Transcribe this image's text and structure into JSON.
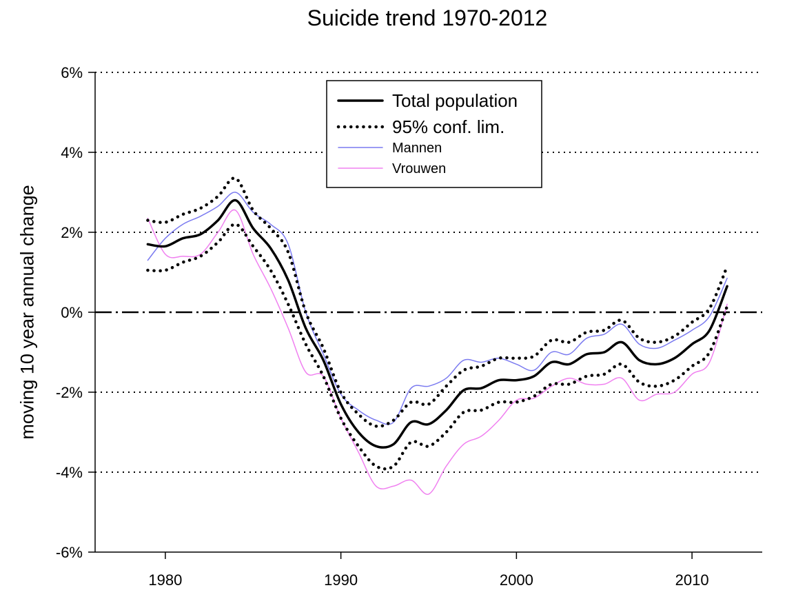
{
  "chart_data": {
    "type": "line",
    "title": "Suicide trend 1970-2012",
    "ylabel": "moving 10 year annual change",
    "xlabel": "",
    "xlim": [
      1976,
      2014
    ],
    "ylim": [
      -6,
      6
    ],
    "x_ticks": [
      1980,
      1990,
      2000,
      2010
    ],
    "y_ticks": [
      6,
      4,
      2,
      0,
      -2,
      -4,
      -6
    ],
    "y_tick_labels": [
      "6%",
      "4%",
      "2%",
      "0%",
      "-2%",
      "-4%",
      "-6%"
    ],
    "grid": "horizontal dotted",
    "zero_line": "dash-dot",
    "legend_position": "top-center",
    "series": [
      {
        "name": "Total population",
        "color": "#000000",
        "style": "solid-thick",
        "x": [
          1979,
          1980,
          1981,
          1982,
          1983,
          1984,
          1985,
          1986,
          1987,
          1988,
          1989,
          1990,
          1991,
          1992,
          1993,
          1994,
          1995,
          1996,
          1997,
          1998,
          1999,
          2000,
          2001,
          2002,
          2003,
          2004,
          2005,
          2006,
          2007,
          2008,
          2009,
          2010,
          2011,
          2012
        ],
        "y": [
          1.7,
          1.65,
          1.85,
          1.95,
          2.3,
          2.8,
          2.1,
          1.6,
          0.8,
          -0.4,
          -1.2,
          -2.3,
          -3.0,
          -3.35,
          -3.3,
          -2.75,
          -2.8,
          -2.45,
          -1.95,
          -1.9,
          -1.7,
          -1.7,
          -1.6,
          -1.25,
          -1.3,
          -1.05,
          -1.0,
          -0.75,
          -1.2,
          -1.3,
          -1.15,
          -0.8,
          -0.45,
          0.65
        ]
      },
      {
        "name": "95% conf. lim.",
        "color": "#000000",
        "style": "dotted-thick",
        "x": [
          1979,
          1980,
          1981,
          1982,
          1983,
          1984,
          1985,
          1986,
          1987,
          1988,
          1989,
          1990,
          1991,
          1992,
          1993,
          1994,
          1995,
          1996,
          1997,
          1998,
          1999,
          2000,
          2001,
          2002,
          2003,
          2004,
          2005,
          2006,
          2007,
          2008,
          2009,
          2010,
          2011,
          2012
        ],
        "y": [
          2.3,
          2.25,
          2.45,
          2.6,
          2.9,
          3.35,
          2.55,
          2.1,
          1.5,
          0.0,
          -0.9,
          -2.0,
          -2.55,
          -2.85,
          -2.7,
          -2.25,
          -2.3,
          -1.85,
          -1.45,
          -1.35,
          -1.15,
          -1.15,
          -1.1,
          -0.7,
          -0.75,
          -0.5,
          -0.45,
          -0.2,
          -0.65,
          -0.75,
          -0.6,
          -0.25,
          0.1,
          1.15
        ]
      },
      {
        "name": "",
        "color": "#000000",
        "style": "dotted-thick",
        "x": [
          1979,
          1980,
          1981,
          1982,
          1983,
          1984,
          1985,
          1986,
          1987,
          1988,
          1989,
          1990,
          1991,
          1992,
          1993,
          1994,
          1995,
          1996,
          1997,
          1998,
          1999,
          2000,
          2001,
          2002,
          2003,
          2004,
          2005,
          2006,
          2007,
          2008,
          2009,
          2010,
          2011,
          2012
        ],
        "y": [
          1.05,
          1.05,
          1.25,
          1.4,
          1.75,
          2.2,
          1.65,
          1.05,
          0.2,
          -0.8,
          -1.6,
          -2.65,
          -3.35,
          -3.85,
          -3.85,
          -3.25,
          -3.35,
          -3.0,
          -2.5,
          -2.45,
          -2.25,
          -2.25,
          -2.1,
          -1.8,
          -1.8,
          -1.6,
          -1.55,
          -1.3,
          -1.75,
          -1.85,
          -1.7,
          -1.35,
          -1.0,
          0.15
        ]
      },
      {
        "name": "Mannen",
        "color": "#7a7af0",
        "style": "solid-thin",
        "x": [
          1979,
          1980,
          1981,
          1982,
          1983,
          1984,
          1985,
          1986,
          1987,
          1988,
          1989,
          1990,
          1991,
          1992,
          1993,
          1994,
          1995,
          1996,
          1997,
          1998,
          1999,
          2000,
          2001,
          2002,
          2003,
          2004,
          2005,
          2006,
          2007,
          2008,
          2009,
          2010,
          2011,
          2012
        ],
        "y": [
          1.3,
          1.85,
          2.2,
          2.4,
          2.65,
          3.0,
          2.5,
          2.2,
          1.7,
          0.0,
          -1.05,
          -2.05,
          -2.45,
          -2.7,
          -2.75,
          -1.9,
          -1.85,
          -1.65,
          -1.2,
          -1.25,
          -1.15,
          -1.3,
          -1.45,
          -1.0,
          -1.05,
          -0.65,
          -0.55,
          -0.3,
          -0.8,
          -0.9,
          -0.7,
          -0.45,
          -0.1,
          0.85
        ]
      },
      {
        "name": "Vrouwen",
        "color": "#f080f0",
        "style": "solid-thin",
        "x": [
          1979,
          1980,
          1981,
          1982,
          1983,
          1984,
          1985,
          1986,
          1987,
          1988,
          1989,
          1990,
          1991,
          1992,
          1993,
          1994,
          1995,
          1996,
          1997,
          1998,
          1999,
          2000,
          2001,
          2002,
          2003,
          2004,
          2005,
          2006,
          2007,
          2008,
          2009,
          2010,
          2011,
          2012
        ],
        "y": [
          2.35,
          1.45,
          1.4,
          1.45,
          2.0,
          2.55,
          1.45,
          0.6,
          -0.4,
          -1.5,
          -1.6,
          -2.65,
          -3.5,
          -4.35,
          -4.35,
          -4.2,
          -4.55,
          -3.85,
          -3.3,
          -3.1,
          -2.7,
          -2.2,
          -2.15,
          -1.85,
          -1.65,
          -1.8,
          -1.8,
          -1.65,
          -2.2,
          -2.05,
          -2.0,
          -1.55,
          -1.25,
          0.2
        ]
      }
    ]
  }
}
